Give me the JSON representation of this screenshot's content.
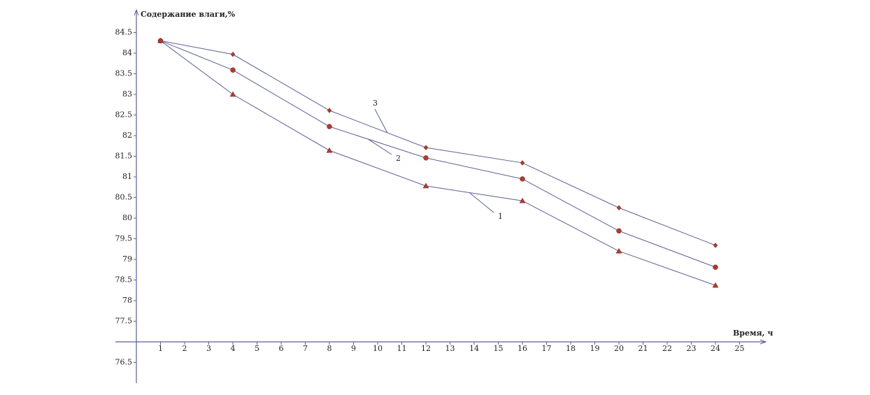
{
  "chart_data": {
    "type": "line",
    "y_label": "Содержание влаги,%",
    "x_label": "Время, ч",
    "x": [
      1,
      4,
      8,
      12,
      16,
      20,
      24
    ],
    "xlim": [
      0,
      26
    ],
    "xticks": [
      1,
      2,
      3,
      4,
      5,
      6,
      7,
      8,
      9,
      10,
      11,
      12,
      13,
      14,
      15,
      16,
      17,
      18,
      19,
      20,
      21,
      22,
      23,
      24,
      25
    ],
    "ylim": [
      76,
      85
    ],
    "yticks": [
      76.5,
      77.5,
      78,
      78.5,
      79,
      79.5,
      80,
      80.5,
      81,
      81.5,
      82,
      82.5,
      83,
      83.5,
      84,
      84.5
    ],
    "line_color": "#5b6094",
    "marker_color": "#b23a2c",
    "series": [
      {
        "name": "1",
        "marker": "triangle",
        "values": [
          84.3,
          83.0,
          81.64,
          80.78,
          80.42,
          79.2,
          78.37
        ]
      },
      {
        "name": "2",
        "marker": "circle",
        "values": [
          84.3,
          83.59,
          82.22,
          81.46,
          80.95,
          79.69,
          78.81
        ]
      },
      {
        "name": "3",
        "marker": "diamond",
        "values": [
          84.3,
          83.97,
          82.61,
          81.71,
          81.34,
          80.25,
          79.34
        ]
      }
    ]
  }
}
